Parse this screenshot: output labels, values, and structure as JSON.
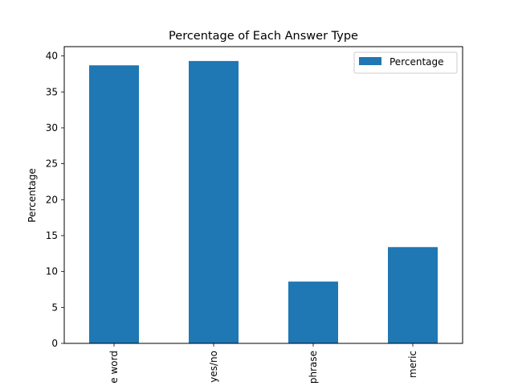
{
  "chart_data": {
    "type": "bar",
    "title": "Percentage of Each Answer Type",
    "xlabel": "",
    "ylabel": "Percentage",
    "categories": [
      "single word",
      "yes/no",
      "phrase",
      "numeric"
    ],
    "visible_tick_labels": [
      "e word",
      "yes/no",
      "phrase",
      "meric"
    ],
    "series": [
      {
        "name": "Percentage",
        "values": [
          38.7,
          39.3,
          8.6,
          13.4
        ],
        "color": "#1f77b4"
      }
    ],
    "ylim": [
      0,
      41.3
    ],
    "yticks": [
      0,
      5,
      10,
      15,
      20,
      25,
      30,
      35,
      40
    ],
    "grid": false,
    "legend_position": "top-right"
  }
}
